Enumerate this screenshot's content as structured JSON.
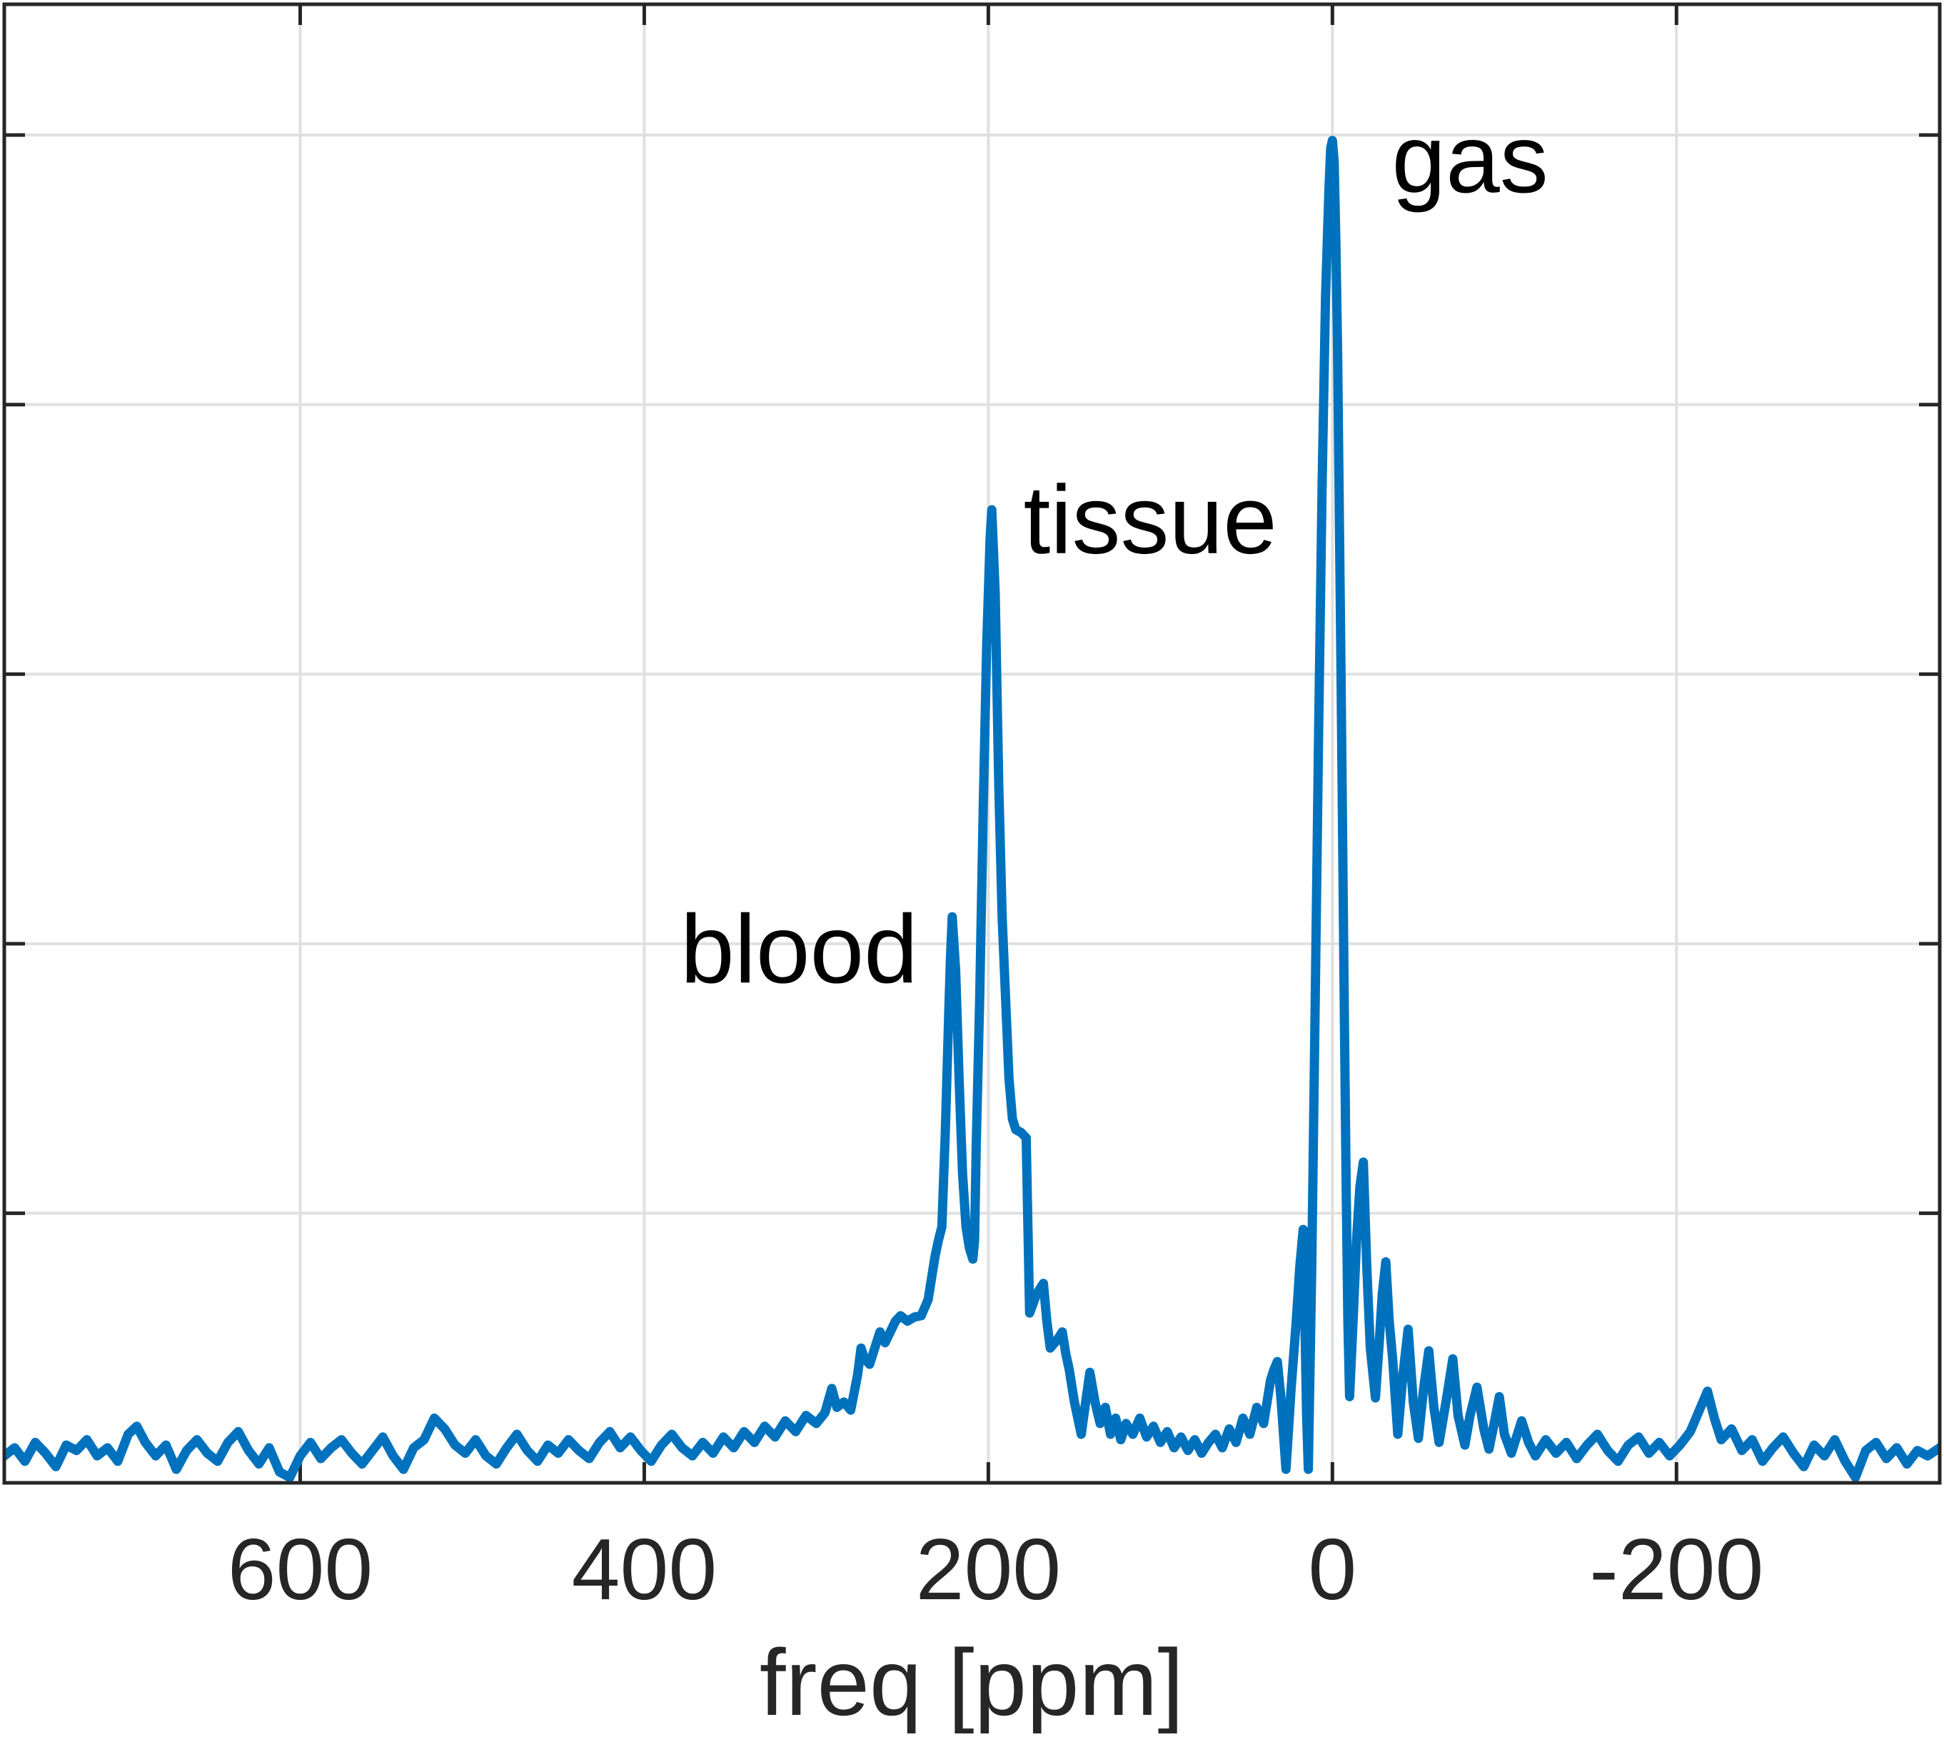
{
  "figure": {
    "background": "#ffffff"
  },
  "axes": {
    "xlabel": "freq [ppm]",
    "box_color": "#262626",
    "grid_color": "#e0e0e0",
    "tick_color": "#262626",
    "x_ticks": [
      {
        "ppm": 600,
        "label": "600"
      },
      {
        "ppm": 400,
        "label": "400"
      },
      {
        "ppm": 200,
        "label": "200"
      },
      {
        "ppm": 0,
        "label": "0"
      },
      {
        "ppm": -200,
        "label": "-200"
      }
    ],
    "y_tick_values": [
      0,
      1,
      2,
      3,
      4,
      5
    ],
    "xlim": [
      772,
      -353
    ],
    "ylim": [
      0,
      5.485
    ],
    "x_axis_reversed": true,
    "y_tick_labels_visible": false
  },
  "chart_data": {
    "type": "line",
    "title": "",
    "xlabel": "freq [ppm]",
    "ylabel": "",
    "x_units": "ppm",
    "x_reversed": true,
    "grid": true,
    "series_color": "#0072BD",
    "annotations": [
      {
        "label": "blood",
        "ppm": 379,
        "value": 1.856,
        "anchor": "start"
      },
      {
        "label": "tissue",
        "ppm": 179.6,
        "value": 3.449,
        "anchor": "start"
      },
      {
        "label": "gas",
        "ppm": -34.5,
        "value": 4.788,
        "anchor": "start"
      }
    ],
    "peaks": [
      {
        "name": "gas",
        "ppm": 0,
        "height": 4.98
      },
      {
        "name": "tissue",
        "ppm": 198,
        "height": 3.61
      },
      {
        "name": "blood",
        "ppm": 221,
        "height": 2.1
      }
    ],
    "points": [
      [
        772,
        0.1
      ],
      [
        766,
        0.13
      ],
      [
        760,
        0.08
      ],
      [
        754,
        0.15
      ],
      [
        748,
        0.11
      ],
      [
        742,
        0.06
      ],
      [
        736,
        0.14
      ],
      [
        730,
        0.12
      ],
      [
        724,
        0.16
      ],
      [
        718,
        0.1
      ],
      [
        712,
        0.13
      ],
      [
        706,
        0.08
      ],
      [
        700,
        0.18
      ],
      [
        695,
        0.21
      ],
      [
        690,
        0.15
      ],
      [
        684,
        0.1
      ],
      [
        678,
        0.14
      ],
      [
        672,
        0.05
      ],
      [
        666,
        0.12
      ],
      [
        660,
        0.16
      ],
      [
        654,
        0.11
      ],
      [
        648,
        0.08
      ],
      [
        642,
        0.15
      ],
      [
        636,
        0.19
      ],
      [
        630,
        0.12
      ],
      [
        624,
        0.07
      ],
      [
        618,
        0.13
      ],
      [
        612,
        0.04
      ],
      [
        606,
        0.02
      ],
      [
        600,
        0.1
      ],
      [
        594,
        0.15
      ],
      [
        588,
        0.09
      ],
      [
        582,
        0.13
      ],
      [
        576,
        0.16
      ],
      [
        570,
        0.11
      ],
      [
        564,
        0.07
      ],
      [
        558,
        0.12
      ],
      [
        552,
        0.17
      ],
      [
        546,
        0.1
      ],
      [
        540,
        0.05
      ],
      [
        534,
        0.13
      ],
      [
        528,
        0.16
      ],
      [
        522,
        0.24
      ],
      [
        516,
        0.2
      ],
      [
        510,
        0.14
      ],
      [
        504,
        0.11
      ],
      [
        498,
        0.16
      ],
      [
        492,
        0.1
      ],
      [
        486,
        0.07
      ],
      [
        480,
        0.13
      ],
      [
        474,
        0.18
      ],
      [
        468,
        0.12
      ],
      [
        462,
        0.08
      ],
      [
        456,
        0.14
      ],
      [
        450,
        0.11
      ],
      [
        444,
        0.16
      ],
      [
        438,
        0.12
      ],
      [
        432,
        0.09
      ],
      [
        426,
        0.15
      ],
      [
        420,
        0.19
      ],
      [
        414,
        0.13
      ],
      [
        408,
        0.17
      ],
      [
        402,
        0.12
      ],
      [
        396,
        0.08
      ],
      [
        390,
        0.14
      ],
      [
        384,
        0.18
      ],
      [
        378,
        0.13
      ],
      [
        372,
        0.1
      ],
      [
        366,
        0.15
      ],
      [
        360,
        0.11
      ],
      [
        354,
        0.17
      ],
      [
        348,
        0.13
      ],
      [
        342,
        0.19
      ],
      [
        336,
        0.15
      ],
      [
        330,
        0.21
      ],
      [
        324,
        0.17
      ],
      [
        318,
        0.23
      ],
      [
        312,
        0.19
      ],
      [
        306,
        0.25
      ],
      [
        300,
        0.22
      ],
      [
        295,
        0.26
      ],
      [
        291,
        0.35
      ],
      [
        288,
        0.28
      ],
      [
        284,
        0.3
      ],
      [
        280,
        0.27
      ],
      [
        276,
        0.4
      ],
      [
        274,
        0.5
      ],
      [
        272,
        0.46
      ],
      [
        269,
        0.44
      ],
      [
        266,
        0.5
      ],
      [
        263,
        0.56
      ],
      [
        260,
        0.52
      ],
      [
        257,
        0.56
      ],
      [
        254,
        0.6
      ],
      [
        251,
        0.62
      ],
      [
        247,
        0.6
      ],
      [
        243,
        0.615
      ],
      [
        239,
        0.62
      ],
      [
        235,
        0.68
      ],
      [
        231,
        0.84
      ],
      [
        229,
        0.9
      ],
      [
        227,
        0.95
      ],
      [
        225,
        1.3
      ],
      [
        223,
        1.75
      ],
      [
        222,
        1.95
      ],
      [
        221,
        2.1
      ],
      [
        219,
        1.9
      ],
      [
        217,
        1.5
      ],
      [
        215,
        1.15
      ],
      [
        213,
        0.95
      ],
      [
        211,
        0.87
      ],
      [
        209,
        0.83
      ],
      [
        208,
        0.9
      ],
      [
        207,
        1.26
      ],
      [
        205,
        1.8
      ],
      [
        203,
        2.5
      ],
      [
        201,
        3.1
      ],
      [
        199,
        3.5
      ],
      [
        198,
        3.61
      ],
      [
        196,
        3.3
      ],
      [
        194,
        2.6
      ],
      [
        192,
        2.1
      ],
      [
        190,
        1.8
      ],
      [
        188,
        1.5
      ],
      [
        186,
        1.35
      ],
      [
        184,
        1.31
      ],
      [
        181,
        1.3
      ],
      [
        178,
        1.28
      ],
      [
        176,
        0.63
      ],
      [
        172,
        0.7
      ],
      [
        168,
        0.74
      ],
      [
        166,
        0.6
      ],
      [
        164,
        0.5
      ],
      [
        160,
        0.53
      ],
      [
        157,
        0.56
      ],
      [
        155,
        0.48
      ],
      [
        153,
        0.42
      ],
      [
        150,
        0.3
      ],
      [
        146,
        0.18
      ],
      [
        143,
        0.32
      ],
      [
        141,
        0.41
      ],
      [
        138,
        0.3
      ],
      [
        135,
        0.22
      ],
      [
        132,
        0.28
      ],
      [
        129,
        0.18
      ],
      [
        126,
        0.24
      ],
      [
        123,
        0.16
      ],
      [
        120,
        0.22
      ],
      [
        116,
        0.18
      ],
      [
        112,
        0.24
      ],
      [
        108,
        0.17
      ],
      [
        104,
        0.21
      ],
      [
        100,
        0.15
      ],
      [
        96,
        0.19
      ],
      [
        92,
        0.13
      ],
      [
        88,
        0.17
      ],
      [
        84,
        0.12
      ],
      [
        80,
        0.16
      ],
      [
        76,
        0.11
      ],
      [
        72,
        0.15
      ],
      [
        68,
        0.18
      ],
      [
        64,
        0.13
      ],
      [
        60,
        0.2
      ],
      [
        56,
        0.15
      ],
      [
        52,
        0.24
      ],
      [
        48,
        0.18
      ],
      [
        44,
        0.28
      ],
      [
        40,
        0.22
      ],
      [
        38,
        0.3
      ],
      [
        36,
        0.38
      ],
      [
        34,
        0.42
      ],
      [
        32,
        0.45
      ],
      [
        30,
        0.32
      ],
      [
        27,
        0.05
      ],
      [
        24,
        0.35
      ],
      [
        21,
        0.6
      ],
      [
        19,
        0.8
      ],
      [
        17,
        0.94
      ],
      [
        16,
        0.6
      ],
      [
        15,
        0.25
      ],
      [
        14,
        0.05
      ],
      [
        12,
        0.8
      ],
      [
        10,
        1.8
      ],
      [
        8,
        2.8
      ],
      [
        6,
        3.7
      ],
      [
        4,
        4.4
      ],
      [
        2,
        4.8
      ],
      [
        1,
        4.95
      ],
      [
        0,
        4.98
      ],
      [
        -1,
        4.9
      ],
      [
        -2,
        4.6
      ],
      [
        -3,
        4.2
      ],
      [
        -4,
        3.6
      ],
      [
        -5,
        3.0
      ],
      [
        -6,
        2.35
      ],
      [
        -7,
        1.7
      ],
      [
        -8,
        1.1
      ],
      [
        -9,
        0.6
      ],
      [
        -10,
        0.32
      ],
      [
        -12,
        0.6
      ],
      [
        -14,
        0.9
      ],
      [
        -16,
        1.1
      ],
      [
        -18,
        1.19
      ],
      [
        -20,
        0.8
      ],
      [
        -22,
        0.5
      ],
      [
        -25,
        0.315
      ],
      [
        -27,
        0.5
      ],
      [
        -29,
        0.7
      ],
      [
        -31,
        0.82
      ],
      [
        -33,
        0.6
      ],
      [
        -35,
        0.46
      ],
      [
        -38,
        0.18
      ],
      [
        -41,
        0.4
      ],
      [
        -44,
        0.57
      ],
      [
        -47,
        0.3
      ],
      [
        -50,
        0.165
      ],
      [
        -53,
        0.35
      ],
      [
        -56,
        0.49
      ],
      [
        -59,
        0.28
      ],
      [
        -62,
        0.15
      ],
      [
        -66,
        0.3
      ],
      [
        -70,
        0.46
      ],
      [
        -73,
        0.25
      ],
      [
        -77,
        0.14
      ],
      [
        -80,
        0.25
      ],
      [
        -84,
        0.355
      ],
      [
        -88,
        0.2
      ],
      [
        -91,
        0.125
      ],
      [
        -94,
        0.22
      ],
      [
        -97,
        0.32
      ],
      [
        -100,
        0.18
      ],
      [
        -104,
        0.11
      ],
      [
        -107,
        0.17
      ],
      [
        -110,
        0.23
      ],
      [
        -114,
        0.15
      ],
      [
        -118,
        0.1
      ],
      [
        -124,
        0.16
      ],
      [
        -130,
        0.11
      ],
      [
        -136,
        0.15
      ],
      [
        -142,
        0.09
      ],
      [
        -148,
        0.14
      ],
      [
        -154,
        0.18
      ],
      [
        -160,
        0.12
      ],
      [
        -166,
        0.08
      ],
      [
        -172,
        0.14
      ],
      [
        -178,
        0.17
      ],
      [
        -184,
        0.11
      ],
      [
        -190,
        0.15
      ],
      [
        -196,
        0.1
      ],
      [
        -202,
        0.14
      ],
      [
        -208,
        0.19
      ],
      [
        -214,
        0.28
      ],
      [
        -218,
        0.34
      ],
      [
        -222,
        0.24
      ],
      [
        -226,
        0.16
      ],
      [
        -232,
        0.2
      ],
      [
        -238,
        0.12
      ],
      [
        -244,
        0.16
      ],
      [
        -250,
        0.08
      ],
      [
        -256,
        0.13
      ],
      [
        -262,
        0.17
      ],
      [
        -268,
        0.11
      ],
      [
        -274,
        0.06
      ],
      [
        -280,
        0.14
      ],
      [
        -286,
        0.1
      ],
      [
        -292,
        0.16
      ],
      [
        -298,
        0.08
      ],
      [
        -304,
        0.02
      ],
      [
        -310,
        0.12
      ],
      [
        -316,
        0.15
      ],
      [
        -322,
        0.09
      ],
      [
        -328,
        0.13
      ],
      [
        -334,
        0.07
      ],
      [
        -340,
        0.12
      ],
      [
        -346,
        0.1
      ],
      [
        -353,
        0.13
      ]
    ]
  }
}
